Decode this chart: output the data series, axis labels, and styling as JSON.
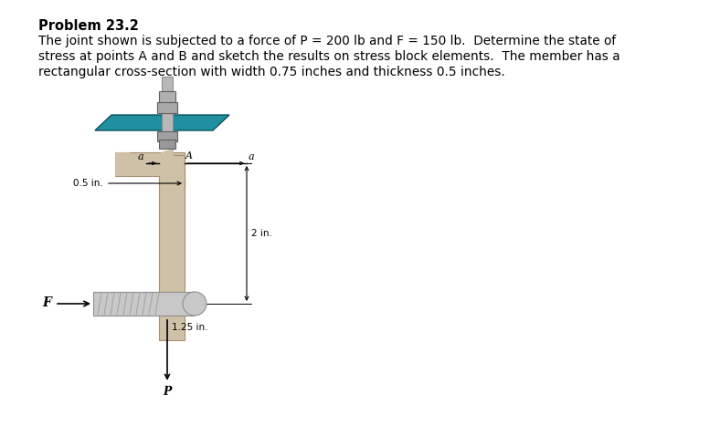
{
  "title": "Problem 23.2",
  "line1": "The joint shown is subjected to a force of P = 200 lb and F = 150 lb.  Determine the state of",
  "line2": "stress at points A and B and sketch the results on stress block elements.  The member has a",
  "line3": "rectangular cross-section with width 0.75 inches and thickness 0.5 inches.",
  "fig_width": 7.88,
  "fig_height": 4.66,
  "dpi": 100,
  "bg_color": "#ffffff",
  "teal_color": "#2090a0",
  "member_color": "#cfc0a8",
  "member_edge": "#a89070",
  "bolt_color": "#b8b8b8",
  "bolt_dark": "#888888",
  "cyl_color": "#c0c0c0",
  "cyl_dark": "#909090",
  "text_color": "#000000"
}
